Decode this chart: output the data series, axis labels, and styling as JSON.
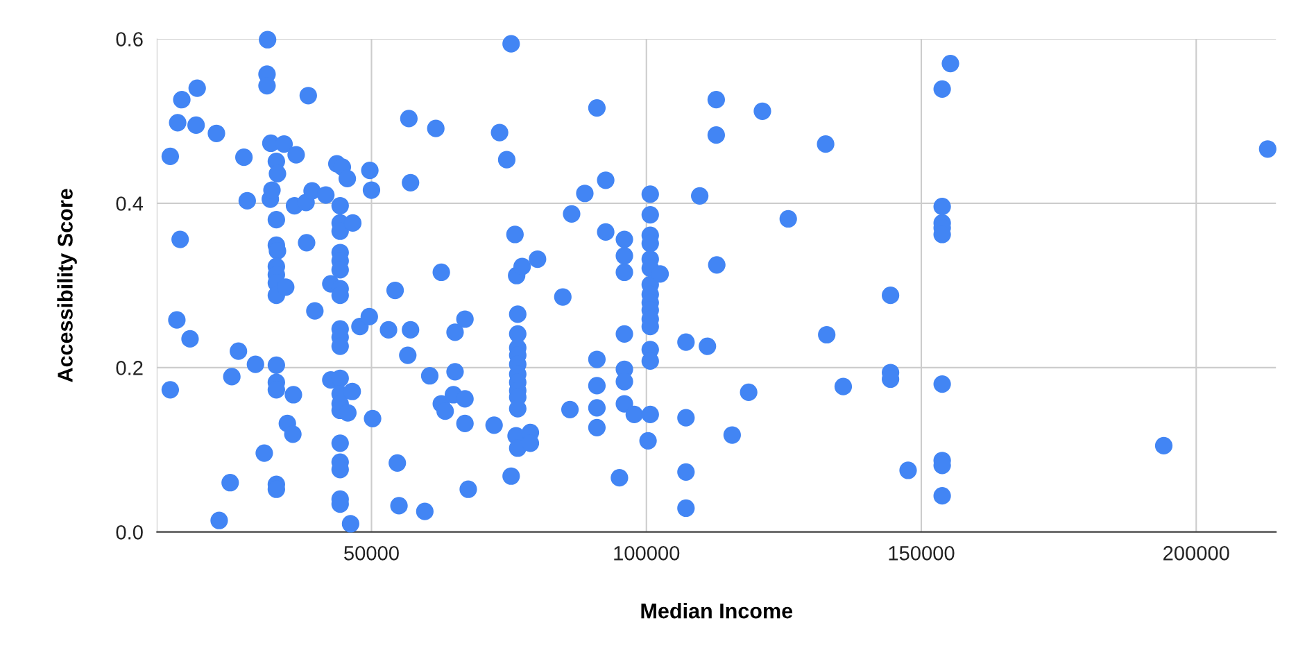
{
  "chart_data": {
    "type": "scatter",
    "xlabel": "Median Income",
    "ylabel": "Accessibility Score",
    "color": "#4285f4",
    "marker": "circle",
    "grid": true,
    "legend": false,
    "xlim": [
      11000,
      214500
    ],
    "xticks": [
      50000,
      100000,
      150000,
      200000
    ],
    "ylim": [
      0,
      0.6
    ],
    "yticks": [
      {
        "value": 0,
        "label": "0.0"
      },
      {
        "value": 0.2,
        "label": "0.2"
      },
      {
        "value": 0.4,
        "label": "0.4"
      },
      {
        "value": 0.6,
        "label": "0.6"
      }
    ],
    "x": [
      13400,
      13400,
      14750,
      15200,
      14600,
      15500,
      17000,
      18100,
      18300,
      21800,
      22300,
      24300,
      24600,
      25800,
      26800,
      27400,
      28900,
      30500,
      31100,
      31000,
      31000,
      31700,
      31600,
      31900,
      32700,
      32900,
      32700,
      32700,
      32900,
      32700,
      32700,
      32700,
      32700,
      32700,
      32700,
      32700,
      32700,
      32700,
      34100,
      34400,
      34700,
      35700,
      35800,
      36300,
      36000,
      38100,
      38200,
      38500,
      39700,
      39200,
      41700,
      42600,
      42600,
      43700,
      44700,
      44300,
      44300,
      44300,
      44300,
      44300,
      44300,
      44300,
      44300,
      44300,
      44300,
      44300,
      44300,
      44300,
      44300,
      44300,
      44300,
      44300,
      44300,
      44300,
      44300,
      46200,
      45600,
      46600,
      45700,
      46500,
      47900,
      49600,
      49700,
      50000,
      50200,
      53100,
      54300,
      54700,
      55000,
      56800,
      57100,
      57100,
      56600,
      59700,
      60600,
      61700,
      62700,
      62700,
      63400,
      64900,
      65200,
      65200,
      67000,
      67000,
      67000,
      67600,
      72300,
      73300,
      74600,
      75400,
      75400,
      76100,
      76400,
      76600,
      76600,
      76600,
      76600,
      76600,
      76600,
      76600,
      76600,
      76600,
      76600,
      76300,
      76600,
      77400,
      78900,
      78900,
      80200,
      84800,
      86100,
      86400,
      88800,
      91000,
      91000,
      91000,
      91000,
      91000,
      92600,
      92600,
      95100,
      96000,
      96000,
      96000,
      96000,
      96000,
      96000,
      96000,
      97800,
      100700,
      100700,
      100700,
      100700,
      100700,
      100700,
      100700,
      100700,
      100700,
      100700,
      100700,
      100700,
      100700,
      100700,
      100700,
      100300,
      102500,
      107200,
      107200,
      107200,
      107200,
      109700,
      111100,
      112700,
      112700,
      112800,
      115600,
      118600,
      121100,
      125800,
      132600,
      132800,
      135800,
      144400,
      144400,
      144400,
      147600,
      153800,
      155300,
      153800,
      153800,
      153800,
      153800,
      153800,
      153800,
      153800,
      153800,
      194100,
      213000
    ],
    "values": [
      0.457,
      0.173,
      0.498,
      0.356,
      0.258,
      0.526,
      0.235,
      0.495,
      0.54,
      0.485,
      0.014,
      0.06,
      0.189,
      0.22,
      0.456,
      0.403,
      0.204,
      0.096,
      0.599,
      0.557,
      0.543,
      0.473,
      0.405,
      0.416,
      0.451,
      0.436,
      0.38,
      0.349,
      0.342,
      0.323,
      0.313,
      0.303,
      0.288,
      0.203,
      0.182,
      0.173,
      0.058,
      0.052,
      0.472,
      0.298,
      0.132,
      0.119,
      0.167,
      0.459,
      0.397,
      0.401,
      0.352,
      0.531,
      0.269,
      0.415,
      0.41,
      0.302,
      0.185,
      0.448,
      0.444,
      0.397,
      0.376,
      0.366,
      0.34,
      0.33,
      0.319,
      0.296,
      0.288,
      0.247,
      0.237,
      0.226,
      0.187,
      0.168,
      0.156,
      0.148,
      0.108,
      0.085,
      0.076,
      0.04,
      0.034,
      0.01,
      0.43,
      0.376,
      0.145,
      0.171,
      0.25,
      0.262,
      0.44,
      0.416,
      0.138,
      0.246,
      0.294,
      0.084,
      0.032,
      0.503,
      0.425,
      0.246,
      0.215,
      0.025,
      0.19,
      0.491,
      0.316,
      0.156,
      0.147,
      0.167,
      0.195,
      0.243,
      0.259,
      0.162,
      0.132,
      0.052,
      0.13,
      0.486,
      0.453,
      0.068,
      0.594,
      0.362,
      0.312,
      0.265,
      0.241,
      0.224,
      0.215,
      0.204,
      0.192,
      0.182,
      0.172,
      0.164,
      0.15,
      0.117,
      0.102,
      0.323,
      0.121,
      0.108,
      0.332,
      0.286,
      0.149,
      0.387,
      0.412,
      0.516,
      0.21,
      0.178,
      0.151,
      0.127,
      0.428,
      0.365,
      0.066,
      0.356,
      0.336,
      0.316,
      0.241,
      0.198,
      0.183,
      0.156,
      0.143,
      0.411,
      0.386,
      0.361,
      0.351,
      0.332,
      0.321,
      0.301,
      0.289,
      0.279,
      0.27,
      0.259,
      0.25,
      0.222,
      0.208,
      0.143,
      0.111,
      0.314,
      0.231,
      0.139,
      0.073,
      0.029,
      0.409,
      0.226,
      0.526,
      0.483,
      0.325,
      0.118,
      0.17,
      0.512,
      0.381,
      0.472,
      0.24,
      0.177,
      0.288,
      0.194,
      0.186,
      0.075,
      0.539,
      0.57,
      0.396,
      0.376,
      0.37,
      0.362,
      0.18,
      0.087,
      0.081,
      0.044,
      0.105,
      0.466
    ]
  }
}
